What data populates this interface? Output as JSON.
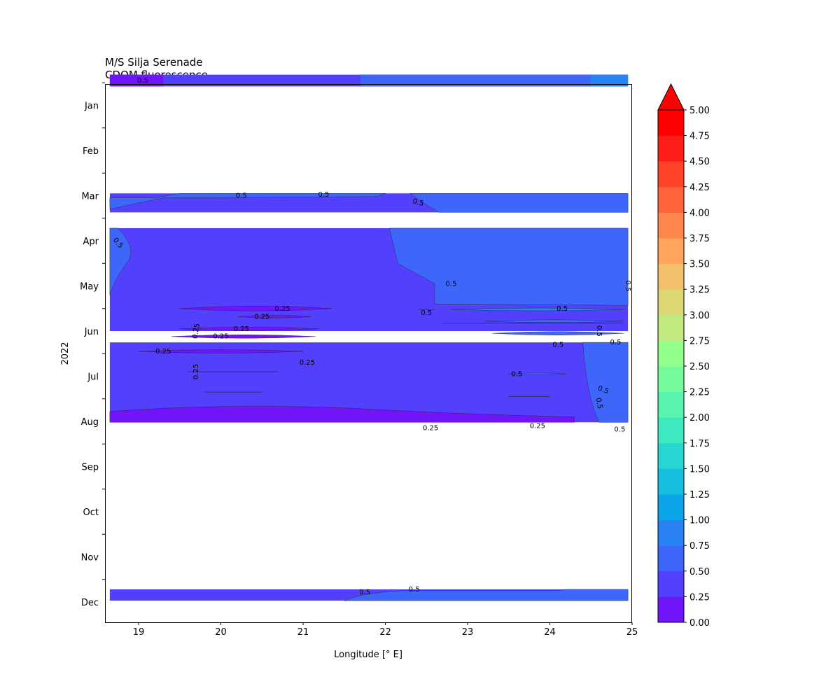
{
  "chart_data": {
    "type": "heatmap",
    "title_line1": "M/S Silja Serenade",
    "title_line2": "CDOM fluorescence",
    "xlabel": "Longitude [° E]",
    "ylabel": "2022",
    "xlim": [
      18.6,
      25.0
    ],
    "x_ticks": [
      "19",
      "20",
      "21",
      "22",
      "23",
      "24",
      "25"
    ],
    "y_range_months": [
      0.3,
      12.0
    ],
    "y_ticks": [
      "Jan",
      "Feb",
      "Mar",
      "Apr",
      "May",
      "Jun",
      "Jul",
      "Aug",
      "Sep",
      "Oct",
      "Nov",
      "Dec"
    ],
    "colorbar": {
      "levels": [
        0.0,
        0.25,
        0.5,
        0.75,
        1.0,
        1.25,
        1.5,
        1.75,
        2.0,
        2.25,
        2.5,
        2.75,
        3.0,
        3.25,
        3.5,
        3.75,
        4.0,
        4.25,
        4.5,
        4.75,
        5.0
      ],
      "tick_labels": [
        "0.00",
        "0.25",
        "0.50",
        "0.75",
        "1.00",
        "1.25",
        "1.50",
        "1.75",
        "2.00",
        "2.25",
        "2.50",
        "2.75",
        "3.00",
        "3.25",
        "3.50",
        "3.75",
        "4.00",
        "4.25",
        "4.50",
        "4.75",
        "5.00"
      ],
      "colors": [
        "#7014f9",
        "#5240fd",
        "#3e66fb",
        "#2a83f4",
        "#0ca5ea",
        "#14bede",
        "#26d6d0",
        "#3ee8c0",
        "#58f5af",
        "#74fb9c",
        "#94fe8a",
        "#c2e97f",
        "#dad774",
        "#f2c06b",
        "#ffa55c",
        "#ff864c",
        "#ff643b",
        "#ff422a",
        "#ff1d18",
        "#ff0000"
      ],
      "extend": "max"
    },
    "data_bands": [
      {
        "period": "early Jan",
        "y_start": 0.32,
        "y_end": 0.58,
        "lon_start": 18.65,
        "lon_end": 24.95,
        "dominant_level": "0.25-0.50",
        "eastern_level": "0.50-0.75"
      },
      {
        "period": "late Mar",
        "y_start": 2.95,
        "y_end": 3.37,
        "lon_start": 18.65,
        "lon_end": 24.95,
        "dominant_level": "0.25-0.50",
        "eastern_level": "0.50-0.75"
      },
      {
        "period": "mid Apr - mid Jun",
        "y_start": 3.72,
        "y_end": 6.0,
        "lon_start": 18.65,
        "lon_end": 24.95,
        "dominant_level": "0.25-0.50",
        "eastern_level": "0.50-0.75"
      },
      {
        "period": "late Jun - mid Aug",
        "y_start": 6.25,
        "y_end": 8.02,
        "lon_start": 18.65,
        "lon_end": 24.95,
        "dominant_level": "0.25-0.50",
        "eastern_level": "0.50-0.75"
      },
      {
        "period": "late Dec",
        "y_start": 11.72,
        "y_end": 11.97,
        "lon_start": 18.65,
        "lon_end": 24.95,
        "dominant_level": "0.25-0.50",
        "eastern_level": "0.50-0.75"
      }
    ],
    "contour_labels": [
      {
        "text": "0.5",
        "lon": 19.05,
        "month": 0.45,
        "rot": 0
      },
      {
        "text": "0.5",
        "lon": 20.25,
        "month": 3.0,
        "rot": 0
      },
      {
        "text": "0.5",
        "lon": 21.25,
        "month": 2.98,
        "rot": 0
      },
      {
        "text": "0.5",
        "lon": 22.4,
        "month": 3.15,
        "rot": 15
      },
      {
        "text": "0.5",
        "lon": 18.75,
        "month": 4.05,
        "rot": 50
      },
      {
        "text": "0.5",
        "lon": 22.8,
        "month": 4.95,
        "rot": 0
      },
      {
        "text": "0.5",
        "lon": 24.15,
        "month": 5.5,
        "rot": 0
      },
      {
        "text": "0.5",
        "lon": 24.95,
        "month": 5.0,
        "rot": 90
      },
      {
        "text": "0.25",
        "lon": 20.75,
        "month": 5.5,
        "rot": 0
      },
      {
        "text": "0.25",
        "lon": 20.5,
        "month": 5.68,
        "rot": 0
      },
      {
        "text": "0.5",
        "lon": 22.5,
        "month": 5.6,
        "rot": 0
      },
      {
        "text": "0.25",
        "lon": 19.7,
        "month": 6.0,
        "rot": -80
      },
      {
        "text": "0.25",
        "lon": 20.25,
        "month": 5.95,
        "rot": 0
      },
      {
        "text": "0.25",
        "lon": 20.0,
        "month": 6.12,
        "rot": 0
      },
      {
        "text": "0.5",
        "lon": 24.6,
        "month": 6.0,
        "rot": 90
      },
      {
        "text": "0.5",
        "lon": 24.8,
        "month": 6.25,
        "rot": 0
      },
      {
        "text": "0.5",
        "lon": 24.1,
        "month": 6.3,
        "rot": 0
      },
      {
        "text": "0.25",
        "lon": 19.3,
        "month": 6.45,
        "rot": 0
      },
      {
        "text": "0.25",
        "lon": 21.05,
        "month": 6.7,
        "rot": 0
      },
      {
        "text": "0.25",
        "lon": 19.7,
        "month": 6.9,
        "rot": -90
      },
      {
        "text": "0.5",
        "lon": 23.6,
        "month": 6.95,
        "rot": 0
      },
      {
        "text": "0.5",
        "lon": 24.65,
        "month": 7.3,
        "rot": 20
      },
      {
        "text": "0.5",
        "lon": 24.6,
        "month": 7.6,
        "rot": 80
      },
      {
        "text": "0.25",
        "lon": 22.55,
        "month": 8.15,
        "rot": 0
      },
      {
        "text": "0.25",
        "lon": 23.85,
        "month": 8.1,
        "rot": 0
      },
      {
        "text": "0.5",
        "lon": 24.85,
        "month": 8.18,
        "rot": 0
      },
      {
        "text": "0.5",
        "lon": 21.75,
        "month": 11.78,
        "rot": 0
      },
      {
        "text": "0.5",
        "lon": 22.35,
        "month": 11.72,
        "rot": 0
      }
    ]
  }
}
